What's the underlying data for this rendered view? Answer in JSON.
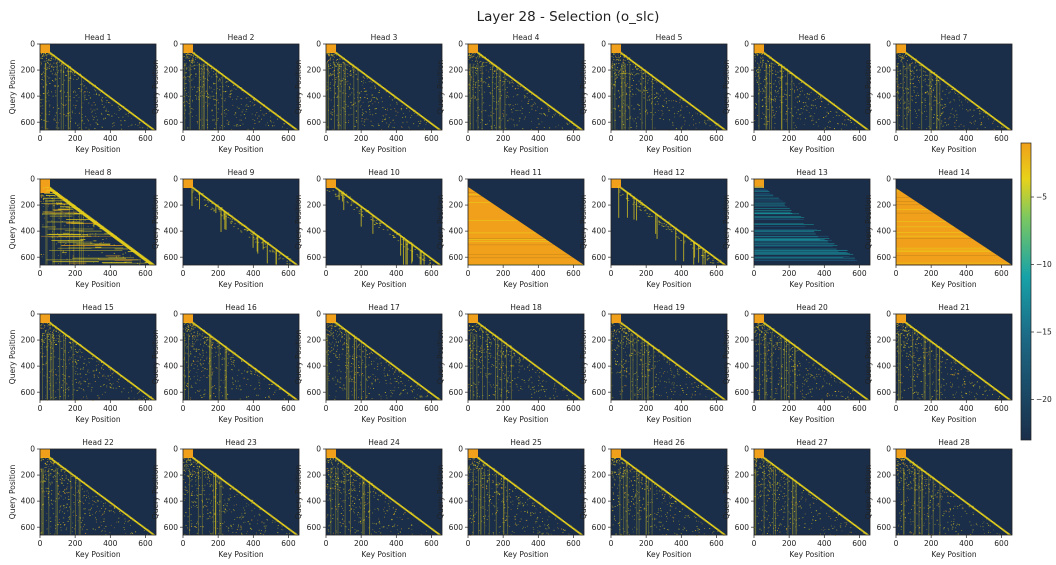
{
  "suptitle": "Layer 28 - Selection (o_slc)",
  "colors": {
    "low": "#1a2e4a",
    "mid": "#17a2a8",
    "high_yellow": "#e8d21a",
    "high_orange": "#f0a01a",
    "axis": "#222222"
  },
  "chart_data": {
    "type": "heatmap",
    "grid": {
      "rows": 4,
      "cols": 7
    },
    "xlabel": "Key Position",
    "ylabel": "Query Position",
    "xticks": [
      0,
      200,
      400,
      600
    ],
    "yticks": [
      0,
      200,
      400,
      600
    ],
    "xlim": [
      0,
      660
    ],
    "ylim": [
      660,
      0
    ],
    "colorbar": {
      "ticks": [
        -5,
        -10,
        -15,
        -20
      ],
      "tick_labels": [
        "−5",
        "−10",
        "−15",
        "−20"
      ],
      "range": [
        -23,
        -1
      ]
    },
    "heads": [
      {
        "title": "Head 1",
        "pattern": "sparse"
      },
      {
        "title": "Head 2",
        "pattern": "sparse"
      },
      {
        "title": "Head 3",
        "pattern": "sparse"
      },
      {
        "title": "Head 4",
        "pattern": "sparse"
      },
      {
        "title": "Head 5",
        "pattern": "sparse"
      },
      {
        "title": "Head 6",
        "pattern": "sparse"
      },
      {
        "title": "Head 7",
        "pattern": "sparse"
      },
      {
        "title": "Head 8",
        "pattern": "dense-rows"
      },
      {
        "title": "Head 9",
        "pattern": "diagonal"
      },
      {
        "title": "Head 10",
        "pattern": "diagonal-cols"
      },
      {
        "title": "Head 11",
        "pattern": "uniform"
      },
      {
        "title": "Head 12",
        "pattern": "diagonal-cols"
      },
      {
        "title": "Head 13",
        "pattern": "faint"
      },
      {
        "title": "Head 14",
        "pattern": "uniform"
      },
      {
        "title": "Head 15",
        "pattern": "sparse"
      },
      {
        "title": "Head 16",
        "pattern": "sparse"
      },
      {
        "title": "Head 17",
        "pattern": "sparse"
      },
      {
        "title": "Head 18",
        "pattern": "sparse"
      },
      {
        "title": "Head 19",
        "pattern": "sparse"
      },
      {
        "title": "Head 20",
        "pattern": "sparse"
      },
      {
        "title": "Head 21",
        "pattern": "sparse"
      },
      {
        "title": "Head 22",
        "pattern": "sparse"
      },
      {
        "title": "Head 23",
        "pattern": "sparse"
      },
      {
        "title": "Head 24",
        "pattern": "sparse"
      },
      {
        "title": "Head 25",
        "pattern": "sparse"
      },
      {
        "title": "Head 26",
        "pattern": "sparse"
      },
      {
        "title": "Head 27",
        "pattern": "sparse"
      },
      {
        "title": "Head 28",
        "pattern": "sparse"
      }
    ]
  }
}
